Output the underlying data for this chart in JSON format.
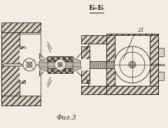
{
  "title": "Б-Б",
  "caption": "Фиг.3",
  "label_21": "21",
  "bg_color": "#f2ede4",
  "line_color": "#222222",
  "hatch_fc": "#d8d0c0",
  "figsize": [
    2.4,
    1.82
  ],
  "dpi": 100
}
